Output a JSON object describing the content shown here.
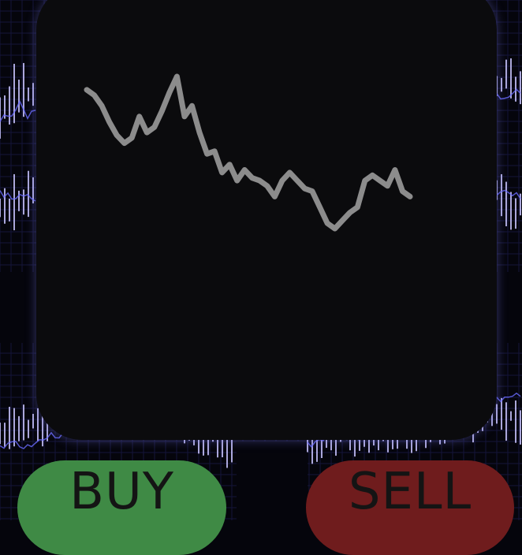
{
  "buttons": {
    "buy_label": "BUY",
    "sell_label": "SELL"
  },
  "colors": {
    "buy": "#3f8a45",
    "sell": "#6f1c1d",
    "panel": "#0b0b0d",
    "price_line": "#8c8c8c"
  },
  "chart_data": {
    "type": "line",
    "series": [
      {
        "values": [
          58,
          56,
          52,
          46,
          41,
          38,
          40,
          48,
          42,
          44,
          50,
          57,
          63,
          48,
          52,
          42,
          34,
          35,
          27,
          30,
          24,
          28,
          25,
          24,
          22,
          18,
          24,
          27,
          24,
          21,
          20,
          14,
          8,
          6,
          9,
          12,
          14,
          24,
          26,
          24,
          22,
          28,
          20,
          18
        ]
      }
    ]
  }
}
